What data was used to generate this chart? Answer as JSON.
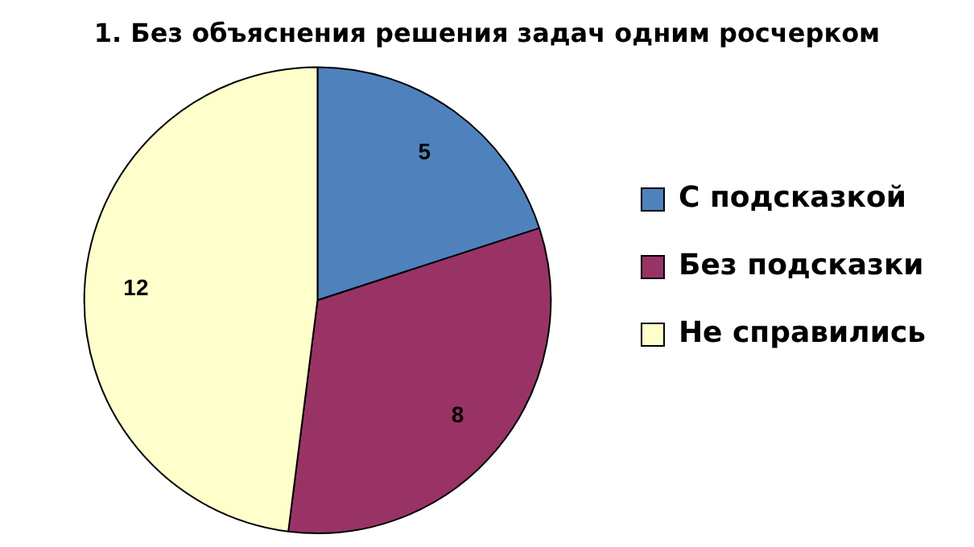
{
  "chart_data": {
    "type": "pie",
    "title": "1. Без объяснения решения задач одним росчерком",
    "categories": [
      "С подсказкой",
      "Без подсказки",
      "Не справились"
    ],
    "values": [
      5,
      8,
      12
    ],
    "colors": [
      "#4f81bd",
      "#993366",
      "#ffffcc"
    ],
    "data_labels": true,
    "legend": "right"
  }
}
